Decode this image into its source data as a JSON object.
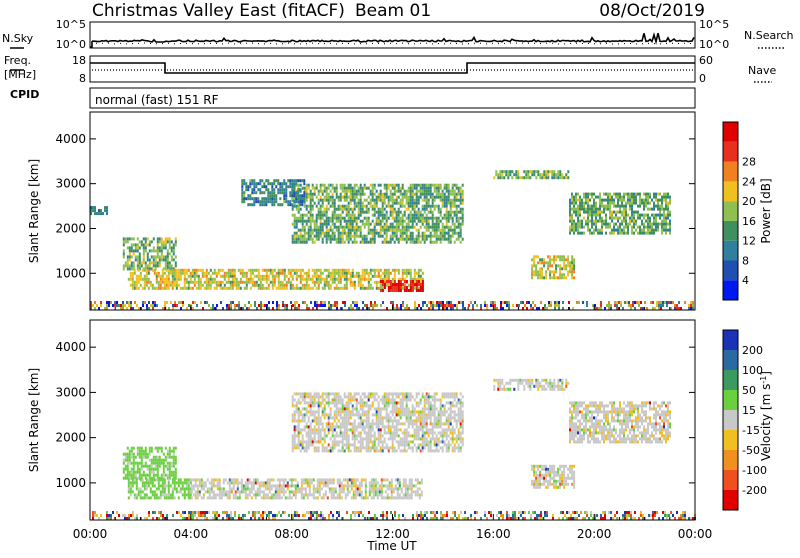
{
  "header": {
    "title": "Christmas Valley East (fitACF)",
    "beam": "Beam 01",
    "date": "08/Oct/2019"
  },
  "noise_panel": {
    "left_label": "N.Sky",
    "left_ticks": [
      "10^5",
      "10^0"
    ],
    "right_label": "N.Search",
    "right_ticks": [
      "10^5",
      "10^0"
    ]
  },
  "freq_panel": {
    "left_label_1": "Freq.",
    "left_label_2": "[MHz]",
    "left_ticks": [
      "18",
      "8"
    ],
    "right_label": "Nave",
    "right_ticks": [
      "60",
      "0"
    ]
  },
  "cpid_panel": {
    "label": "CPID",
    "mode_text": "normal (fast) 151 RF"
  },
  "chart_data": [
    {
      "type": "heatmap",
      "title": "",
      "xlabel": "Time UT",
      "ylabel": "Slant Range [km]",
      "x_ticks": [
        "00:00",
        "04:00",
        "08:00",
        "12:00",
        "16:00",
        "20:00",
        "00:00"
      ],
      "y_ticks": [
        "1000",
        "2000",
        "3000",
        "4000"
      ],
      "ylim": [
        180,
        4600
      ],
      "colorbar": {
        "label": "Power [dB]",
        "ticks": [
          "4",
          "8",
          "12",
          "16",
          "20",
          "24",
          "28"
        ],
        "colors": [
          "#0018f0",
          "#1f4fb0",
          "#2f7f9f",
          "#3f8f5f",
          "#8fbf4f",
          "#f0c020",
          "#f08020",
          "#e83020",
          "#e00000"
        ]
      },
      "echo_regions": [
        {
          "region": "ground scatter band",
          "start_hr": 0.0,
          "end_hr": 24.0,
          "range_km": [
            200,
            380
          ],
          "level": "mixed"
        },
        {
          "region": "morning tail",
          "start_hr": 1.3,
          "end_hr": 3.4,
          "range_km": [
            1100,
            1800
          ],
          "level": 12
        },
        {
          "region": "main band",
          "start_hr": 1.5,
          "end_hr": 13.2,
          "range_km": [
            650,
            1100
          ],
          "level": 16
        },
        {
          "region": "strong patch",
          "start_hr": 11.5,
          "end_hr": 13.2,
          "range_km": [
            600,
            850
          ],
          "level": 28
        },
        {
          "region": "upper arc",
          "start_hr": 8.0,
          "end_hr": 14.8,
          "range_km": [
            1700,
            3000
          ],
          "level": 12
        },
        {
          "region": "late morning scatter",
          "start_hr": 6.0,
          "end_hr": 8.5,
          "range_km": [
            2500,
            3100
          ],
          "level": 8
        },
        {
          "region": "afternoon streak",
          "start_hr": 16.0,
          "end_hr": 19.0,
          "range_km": [
            3100,
            3300
          ],
          "level": 12
        },
        {
          "region": "evening patch",
          "start_hr": 17.5,
          "end_hr": 19.2,
          "range_km": [
            900,
            1400
          ],
          "level": 16
        },
        {
          "region": "evening arc",
          "start_hr": 19.0,
          "end_hr": 23.0,
          "range_km": [
            1900,
            2800
          ],
          "level": 12
        },
        {
          "region": "dawn dots",
          "start_hr": 0.0,
          "end_hr": 0.7,
          "range_km": [
            2300,
            2500
          ],
          "level": 8
        }
      ]
    },
    {
      "type": "heatmap",
      "title": "",
      "xlabel": "Time UT",
      "ylabel": "Slant Range [km]",
      "x_ticks": [
        "00:00",
        "04:00",
        "08:00",
        "12:00",
        "16:00",
        "20:00",
        "00:00"
      ],
      "y_ticks": [
        "1000",
        "2000",
        "3000",
        "4000"
      ],
      "ylim": [
        180,
        4600
      ],
      "colorbar": {
        "label": "Velocity [m s-1]",
        "ticks": [
          "200",
          "100",
          "50",
          "15",
          "-15",
          "-50",
          "-100",
          "-200"
        ],
        "colors": [
          "#1a32b8",
          "#2a6aa0",
          "#3a9a60",
          "#6ad040",
          "#c8c8c8",
          "#f0c020",
          "#f09020",
          "#f05020",
          "#e00000"
        ]
      },
      "echo_regions": [
        {
          "region": "ground scatter band",
          "start_hr": 0.0,
          "end_hr": 24.0,
          "range_km": [
            200,
            380
          ],
          "level": "mixed"
        },
        {
          "region": "morning tail",
          "start_hr": 1.3,
          "end_hr": 3.4,
          "range_km": [
            1100,
            1800
          ],
          "level": 50
        },
        {
          "region": "main band early",
          "start_hr": 1.5,
          "end_hr": 4.0,
          "range_km": [
            650,
            1100
          ],
          "level": 50
        },
        {
          "region": "main band",
          "start_hr": 4.0,
          "end_hr": 13.2,
          "range_km": [
            650,
            1100
          ],
          "level": 0
        },
        {
          "region": "upper arc",
          "start_hr": 8.0,
          "end_hr": 14.8,
          "range_km": [
            1700,
            3000
          ],
          "level": 0
        },
        {
          "region": "afternoon streak",
          "start_hr": 16.0,
          "end_hr": 19.0,
          "range_km": [
            3100,
            3300
          ],
          "level": 0
        },
        {
          "region": "evening patch",
          "start_hr": 17.5,
          "end_hr": 19.2,
          "range_km": [
            900,
            1400
          ],
          "level": 0
        },
        {
          "region": "evening arc",
          "start_hr": 19.0,
          "end_hr": 23.0,
          "range_km": [
            1900,
            2800
          ],
          "level": 0
        }
      ]
    }
  ]
}
